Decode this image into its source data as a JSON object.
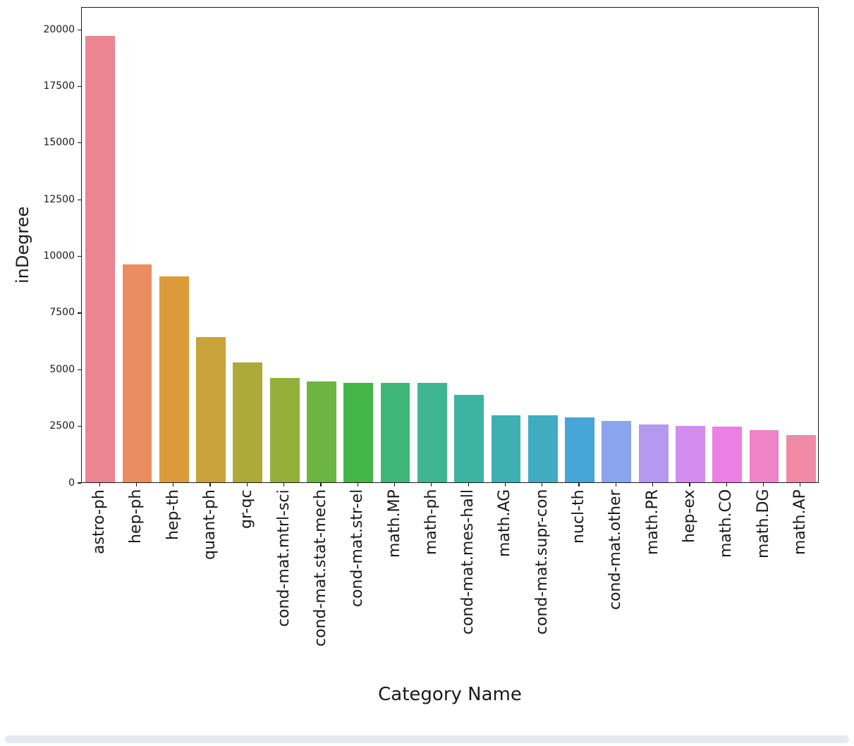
{
  "figure": {
    "background": "#ffffff",
    "scrollbar_color": "#e4eaf0"
  },
  "chart_data": {
    "type": "bar",
    "title": "",
    "xlabel": "Category Name",
    "ylabel": "inDegree",
    "ylim": [
      0,
      21000
    ],
    "yticks": [
      0,
      2500,
      5000,
      7500,
      10000,
      12500,
      15000,
      17500,
      20000
    ],
    "grid": false,
    "legend": "none",
    "categories": [
      "astro-ph",
      "hep-ph",
      "hep-th",
      "quant-ph",
      "gr-qc",
      "cond-mat.mtrl-sci",
      "cond-mat.stat-mech",
      "cond-mat.str-el",
      "math.MP",
      "math-ph",
      "cond-mat.mes-hall",
      "math.AG",
      "cond-mat.supr-con",
      "nucl-th",
      "cond-mat.other",
      "math.PR",
      "hep-ex",
      "math.CO",
      "math.DG",
      "math.AP"
    ],
    "values": [
      19700,
      9600,
      9100,
      6400,
      5300,
      4600,
      4450,
      4400,
      4400,
      4400,
      3850,
      2950,
      2950,
      2850,
      2700,
      2550,
      2500,
      2450,
      2300,
      2100
    ],
    "bar_colors": [
      "#ed8492",
      "#eb8d60",
      "#dd9a3b",
      "#c7a33a",
      "#afa939",
      "#94b03b",
      "#6db542",
      "#43b647",
      "#3fb778",
      "#3eb690",
      "#3db4a1",
      "#3eb0b1",
      "#3facc2",
      "#45a6d7",
      "#8aa4ee",
      "#b399ef",
      "#d38df0",
      "#eb80e4",
      "#ef83c8",
      "#f08aa7"
    ]
  }
}
